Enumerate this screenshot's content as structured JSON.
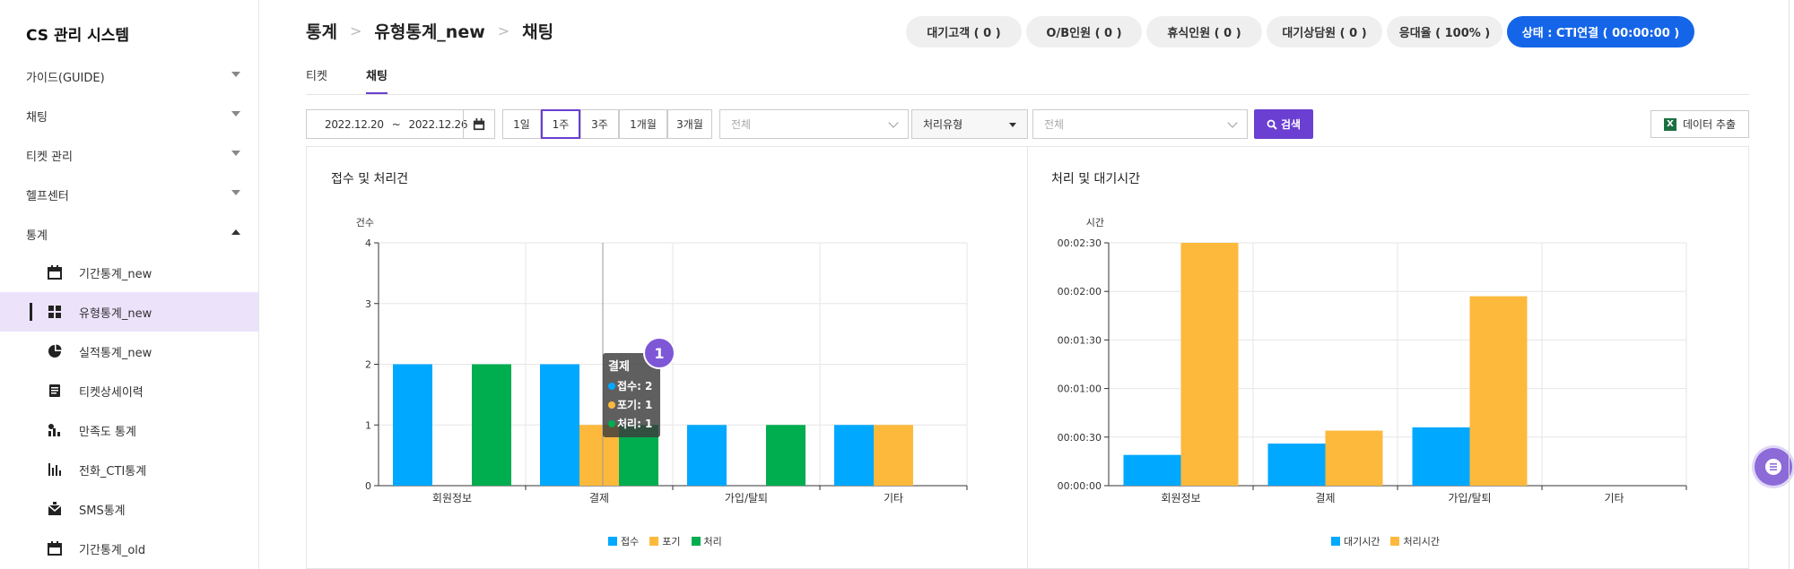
{
  "app_title": "CS 관리 시스템",
  "sidebar": {
    "menus": [
      {
        "label": "가이드(GUIDE)",
        "expanded": false
      },
      {
        "label": "채팅",
        "expanded": false
      },
      {
        "label": "티켓 관리",
        "expanded": false
      },
      {
        "label": "헬프센터",
        "expanded": false
      },
      {
        "label": "통계",
        "expanded": true
      }
    ],
    "sub_items": [
      {
        "label": "기간통계_new",
        "icon": "calendar-icon"
      },
      {
        "label": "유형통계_new",
        "icon": "grid-icon",
        "active": true
      },
      {
        "label": "실적통계_new",
        "icon": "pie-icon"
      },
      {
        "label": "티켓상세이력",
        "icon": "document-icon"
      },
      {
        "label": "만족도 통계",
        "icon": "satisfaction-icon"
      },
      {
        "label": "전화_CTI통계",
        "icon": "bar-chart-icon"
      },
      {
        "label": "SMS통계",
        "icon": "envelope-icon"
      },
      {
        "label": "기간통계_old",
        "icon": "calendar-icon"
      }
    ]
  },
  "breadcrumb": [
    "통계",
    "유형통계_new",
    "채팅"
  ],
  "status_pills": [
    {
      "label": "대기고객 ( 0 )"
    },
    {
      "label": "O/B인원 ( 0 )"
    },
    {
      "label": "휴식인원 ( 0 )"
    },
    {
      "label": "대기상담원 ( 0 )"
    },
    {
      "label": "응대율 ( 100% )"
    },
    {
      "label": "상태 : CTI연결 ( 00:00:00 )"
    }
  ],
  "tabs": [
    {
      "label": "티켓",
      "active": false
    },
    {
      "label": "채팅",
      "active": true
    }
  ],
  "filter": {
    "date_from": "2022.12.20",
    "date_sep": "~",
    "date_to": "2022.12.26",
    "ranges": [
      "1일",
      "1주",
      "3주",
      "1개월",
      "3개월"
    ],
    "selected_range": "1주",
    "select1": "전체",
    "select2": "처리유형",
    "select3": "전체",
    "search_label": "검색",
    "export_label": "데이터 추출",
    "accent": "#6a3fd1"
  },
  "charts": {
    "left_title": "접수 및 처리건",
    "right_title": "처리 및 대기시간",
    "tooltip": {
      "title": "결제",
      "lines": [
        "접수: 2",
        "포기: 1",
        "처리: 1"
      ],
      "badge": "1"
    }
  },
  "chart_data": [
    {
      "type": "bar",
      "title": "접수 및 처리건",
      "ylabel": "건수",
      "ylim": [
        0,
        4
      ],
      "yticks": [
        "0",
        "1",
        "2",
        "3",
        "4"
      ],
      "categories": [
        "회원정보",
        "결제",
        "가입/탈퇴",
        "기타"
      ],
      "series": [
        {
          "name": "접수",
          "color": "#00a8ff",
          "values": [
            2,
            2,
            1,
            1
          ]
        },
        {
          "name": "포기",
          "color": "#fdb93c",
          "values": [
            0,
            1,
            0,
            1
          ]
        },
        {
          "name": "처리",
          "color": "#00ad4f",
          "values": [
            2,
            1,
            1,
            0
          ]
        }
      ],
      "grid": true,
      "legend": "bottom-center"
    },
    {
      "type": "bar",
      "title": "처리 및 대기시간",
      "ylabel": "시간",
      "ylim": [
        0,
        150
      ],
      "yticks": [
        "00:00:00",
        "00:00:30",
        "00:01:00",
        "00:01:30",
        "00:02:00",
        "00:02:30"
      ],
      "categories": [
        "회원정보",
        "결제",
        "가입/탈퇴",
        "기타"
      ],
      "series": [
        {
          "name": "대기시간",
          "color": "#00a8ff",
          "values": [
            19,
            26,
            36,
            0
          ]
        },
        {
          "name": "처리시간",
          "color": "#fdb93c",
          "values": [
            155,
            34,
            117,
            0
          ]
        }
      ],
      "grid": true,
      "legend": "bottom-center"
    }
  ]
}
